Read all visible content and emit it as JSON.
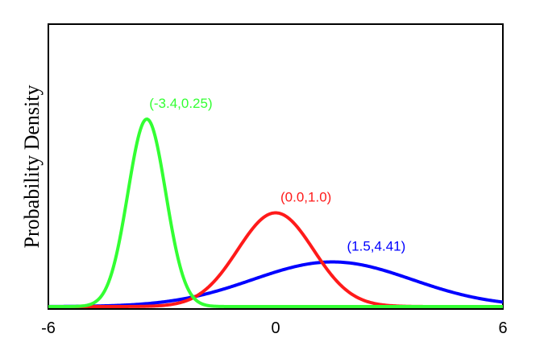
{
  "chart_data": {
    "type": "line",
    "title": "",
    "xlabel": "",
    "ylabel": "Probability Density",
    "xlim": [
      -6,
      6
    ],
    "xticks": [
      {
        "value": -6,
        "label": "-6"
      },
      {
        "value": 0,
        "label": "0"
      },
      {
        "value": 6,
        "label": "6"
      }
    ],
    "grid": false,
    "legend": "none",
    "series": [
      {
        "params": [
          -3.4,
          0.25
        ],
        "mean": -3.4,
        "variance": 0.25,
        "color": "#33ff33",
        "annotation": "(-3.4,0.25)"
      },
      {
        "params": [
          0.0,
          1.0
        ],
        "mean": 0.0,
        "variance": 1.0,
        "color": "#ff1a1a",
        "annotation": "(0.0,1.0)"
      },
      {
        "params": [
          1.5,
          4.41
        ],
        "mean": 1.5,
        "variance": 4.41,
        "color": "#0000ff",
        "annotation": "(1.5,4.41)"
      }
    ]
  }
}
